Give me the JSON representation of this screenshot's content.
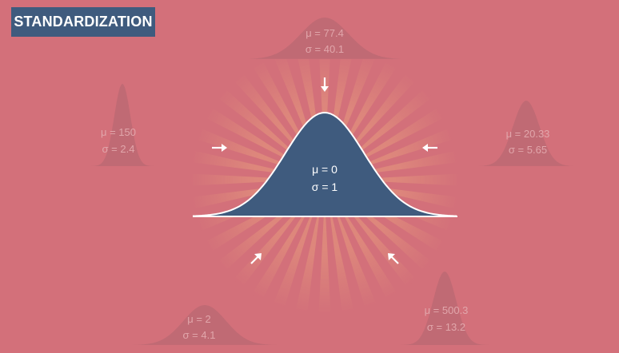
{
  "title": "STANDARDIZATION",
  "center": {
    "mu": "μ = 0",
    "sigma": "σ = 1"
  },
  "distributions": [
    {
      "id": "top",
      "mu": "μ = 77.4",
      "sigma": "σ = 40.1"
    },
    {
      "id": "left",
      "mu": "μ = 150",
      "sigma": "σ = 2.4"
    },
    {
      "id": "right",
      "mu": "μ = 20.33",
      "sigma": "σ = 5.65"
    },
    {
      "id": "bottom-left",
      "mu": "μ = 2",
      "sigma": "σ = 4.1"
    },
    {
      "id": "bottom-right",
      "mu": "μ = 500.3",
      "sigma": "σ = 13.2"
    }
  ],
  "colors": {
    "background": "#d3707a",
    "accent": "#3f5b7e",
    "faded_curve": "#c06a74",
    "faded_text": "#e1a6ab",
    "rays": "#e9a07d"
  },
  "icons": [
    "arrow-down-icon",
    "arrow-right-icon",
    "arrow-left-icon",
    "arrow-up-right-icon",
    "arrow-up-left-icon"
  ]
}
